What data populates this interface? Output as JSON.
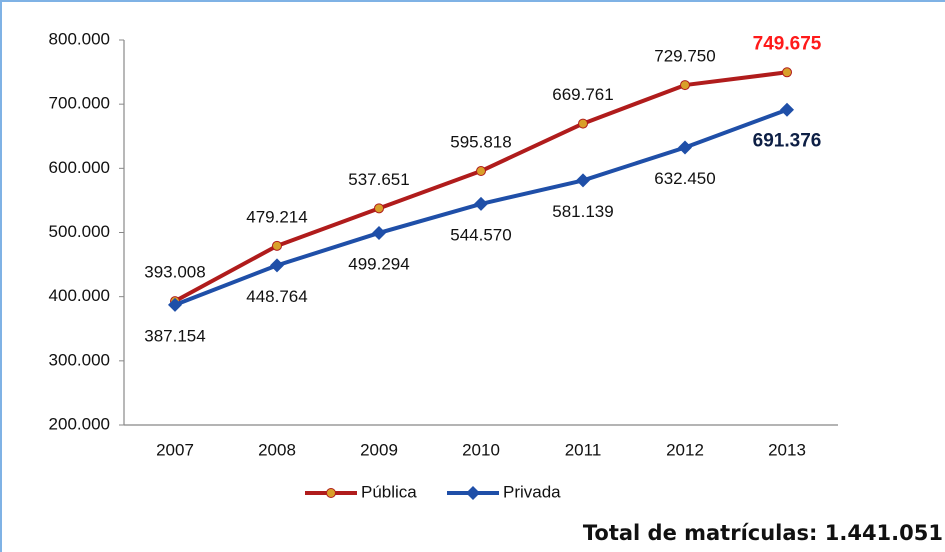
{
  "chart_data": {
    "type": "line",
    "categories": [
      "2007",
      "2008",
      "2009",
      "2010",
      "2011",
      "2012",
      "2013"
    ],
    "series": [
      {
        "name": "Pública",
        "color": "#b01c1c",
        "marker_color": "#d9a02a",
        "values": [
          393008,
          479214,
          537651,
          595818,
          669761,
          729750,
          749675
        ],
        "value_labels": [
          "393.008",
          "479.214",
          "537.651",
          "595.818",
          "669.761",
          "729.750",
          "749.675"
        ]
      },
      {
        "name": "Privada",
        "color": "#1f4fa8",
        "marker_color": "#1f4fa8",
        "values": [
          387154,
          448764,
          499294,
          544570,
          581139,
          632450,
          691376
        ],
        "value_labels": [
          "387.154",
          "448.764",
          "499.294",
          "544.570",
          "581.139",
          "632.450",
          "691.376"
        ]
      }
    ],
    "ylim": [
      200000,
      800000
    ],
    "yticks": [
      {
        "value": 200000,
        "label": "200.000"
      },
      {
        "value": 300000,
        "label": "300.000"
      },
      {
        "value": 400000,
        "label": "400.000"
      },
      {
        "value": 500000,
        "label": "500.000"
      },
      {
        "value": 600000,
        "label": "600.000"
      },
      {
        "value": 700000,
        "label": "700.000"
      },
      {
        "value": 800000,
        "label": "800.000"
      }
    ],
    "legend": "bottom",
    "annotation": "Total de matrículas: 1.441.051"
  }
}
